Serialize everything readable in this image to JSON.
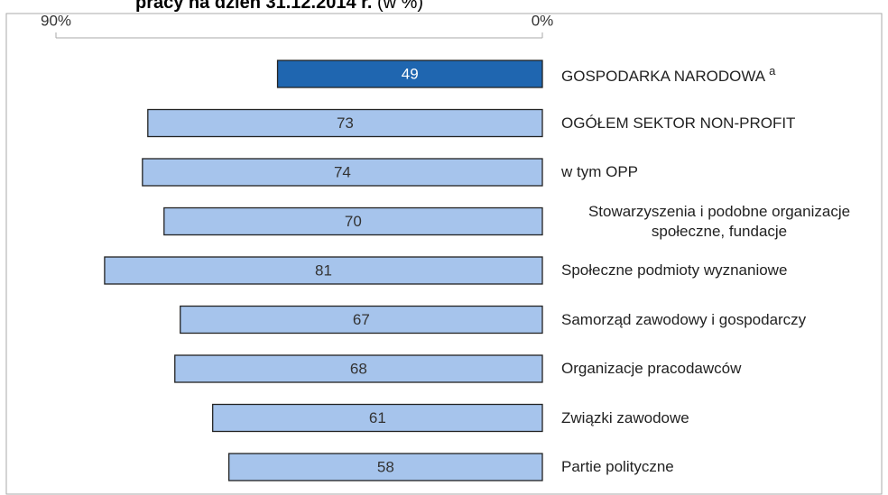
{
  "chart_data": {
    "type": "hbar",
    "title": "pracy na dzień 31.12.2014 r.",
    "title_unit": "(w %)",
    "categories": [
      "GOSPODARKA NARODOWA",
      "OGÓŁEM SEKTOR NON-PROFIT",
      "w tym OPP",
      "Stowarzyszenia i podobne organizacje społeczne, fundacje",
      "Społeczne podmioty wyznaniowe",
      "Samorząd zawodowy i gospodarczy",
      "Organizacje pracodawców",
      "Związki zawodowe",
      "Partie polityczne"
    ],
    "category_notes": [
      "a",
      null,
      null,
      null,
      null,
      null,
      null,
      null,
      null
    ],
    "values": [
      49,
      73,
      74,
      70,
      81,
      67,
      68,
      61,
      58
    ],
    "colors": [
      "#1f66b0",
      "#a6c4ec",
      "#a6c4ec",
      "#a6c4ec",
      "#a6c4ec",
      "#a6c4ec",
      "#a6c4ec",
      "#a6c4ec",
      "#a6c4ec"
    ],
    "label_colors": [
      "#ffffff",
      "#333333",
      "#333333",
      "#333333",
      "#333333",
      "#333333",
      "#333333",
      "#333333",
      "#333333"
    ],
    "xlim": [
      0,
      90
    ],
    "xticks": [
      {
        "value": 0,
        "label": "0%"
      },
      {
        "value": 90,
        "label": "90%"
      }
    ],
    "reversed": true
  }
}
